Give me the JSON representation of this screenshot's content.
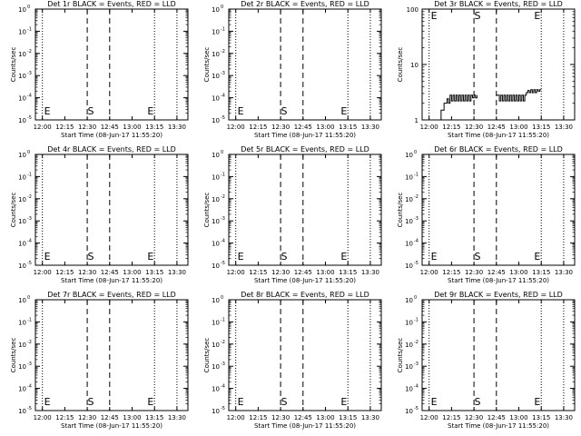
{
  "figure": {
    "background": "#ffffff",
    "ink": "#000000",
    "red": "#ff0000"
  },
  "chart_data": [
    {
      "type": "line",
      "title": "Det 1r BLACK = Events, RED = LLD",
      "xlabel": "Start Time (08-Jun-17 11:55:20)",
      "ylabel": "Counts/sec",
      "x_ticks": [
        "12:00",
        "12:15",
        "12:30",
        "12:45",
        "13:00",
        "13:15",
        "13:30"
      ],
      "y_scale": "log",
      "y_ticks": [
        "10^0",
        "10^-1",
        "10^-2",
        "10^-3",
        "10^-4",
        "10^-5"
      ],
      "markers": [
        {
          "label": "E",
          "x": "12:00"
        },
        {
          "label": "S",
          "x": "12:29"
        },
        {
          "label": "E",
          "x": "13:09"
        }
      ],
      "series": []
    },
    {
      "type": "line",
      "title": "Det 2r BLACK = Events, RED = LLD",
      "xlabel": "Start Time (08-Jun-17 11:55:20)",
      "ylabel": "Counts/sec",
      "x_ticks": [
        "12:00",
        "12:15",
        "12:30",
        "12:45",
        "13:00",
        "13:15",
        "13:30"
      ],
      "y_scale": "log",
      "y_ticks": [
        "10^0",
        "10^-1",
        "10^-2",
        "10^-3",
        "10^-4",
        "10^-5"
      ],
      "markers": [
        {
          "label": "E",
          "x": "12:00"
        },
        {
          "label": "S",
          "x": "12:29"
        },
        {
          "label": "E",
          "x": "13:09"
        }
      ],
      "series": []
    },
    {
      "type": "line",
      "title": "Det 3r BLACK = Events, RED = LLD",
      "xlabel": "Start Time (08-Jun-17 11:55:20)",
      "ylabel": "Counts/sec",
      "x_ticks": [
        "12:00",
        "12:15",
        "12:30",
        "12:45",
        "13:00",
        "13:15",
        "13:30"
      ],
      "y_scale": "log",
      "y_ticks": [
        "1",
        "10",
        "100"
      ],
      "markers": [
        {
          "label": "E",
          "x": "12:00"
        },
        {
          "label": "S",
          "x": "12:29"
        },
        {
          "label": "E",
          "x": "13:09"
        }
      ],
      "series": [
        {
          "color": "#000000",
          "x": [
            "12:08",
            "12:08",
            "12:10",
            "12:10",
            "12:11",
            "12:12",
            "12:13",
            "12:14",
            "12:15",
            "12:16",
            "12:17",
            "12:18",
            "12:19",
            "12:20",
            "12:21",
            "12:22",
            "12:23",
            "12:24",
            "12:25",
            "12:26",
            "12:27",
            "12:28",
            "12:29",
            "12:30",
            "12:31",
            "12:32"
          ],
          "y": [
            1,
            1.5,
            1.5,
            2,
            2,
            2.4,
            2,
            2.8,
            2.2,
            2.8,
            2.2,
            2.8,
            2.2,
            2.8,
            2.2,
            2.8,
            2.2,
            2.8,
            2.2,
            2.8,
            2.2,
            2.8,
            2.5,
            2.8,
            2.5,
            2.8
          ]
        },
        {
          "color": "#000000",
          "x": [
            "12:45",
            "12:46",
            "12:47",
            "12:48",
            "12:49",
            "12:50",
            "12:51",
            "12:52",
            "12:53",
            "12:54",
            "12:55",
            "12:56",
            "12:57",
            "12:58",
            "12:59",
            "13:00",
            "13:01",
            "13:02",
            "13:03",
            "13:04",
            "13:05",
            "13:06",
            "13:07",
            "13:08",
            "13:09",
            "13:10",
            "13:11",
            "13:12",
            "13:13",
            "13:14",
            "13:15"
          ],
          "y": [
            2.8,
            2.8,
            2.2,
            2.8,
            2.2,
            2.8,
            2.2,
            2.8,
            2.2,
            2.8,
            2.2,
            2.8,
            2.2,
            2.8,
            2.2,
            2.8,
            2.2,
            2.8,
            2.2,
            2.8,
            3.1,
            3.4,
            3.1,
            3.5,
            3.1,
            3.5,
            3.1,
            3.5,
            3.3,
            3.5,
            3.5
          ]
        }
      ]
    },
    {
      "type": "line",
      "title": "Det 4r BLACK = Events, RED = LLD",
      "xlabel": "Start Time (08-Jun-17 11:55:20)",
      "ylabel": "Counts/sec",
      "x_ticks": [
        "12:00",
        "12:15",
        "12:30",
        "12:45",
        "13:00",
        "13:15",
        "13:30"
      ],
      "y_scale": "log",
      "y_ticks": [
        "10^0",
        "10^-1",
        "10^-2",
        "10^-3",
        "10^-4",
        "10^-5"
      ],
      "markers": [
        {
          "label": "E",
          "x": "12:00"
        },
        {
          "label": "S",
          "x": "12:29"
        },
        {
          "label": "E",
          "x": "13:09"
        }
      ],
      "series": []
    },
    {
      "type": "line",
      "title": "Det 5r BLACK = Events, RED = LLD",
      "xlabel": "Start Time (08-Jun-17 11:55:20)",
      "ylabel": "Counts/sec",
      "x_ticks": [
        "12:00",
        "12:15",
        "12:30",
        "12:45",
        "13:00",
        "13:15",
        "13:30"
      ],
      "y_scale": "log",
      "y_ticks": [
        "10^0",
        "10^-1",
        "10^-2",
        "10^-3",
        "10^-4",
        "10^-5"
      ],
      "markers": [
        {
          "label": "E",
          "x": "12:00"
        },
        {
          "label": "S",
          "x": "12:29"
        },
        {
          "label": "E",
          "x": "13:09"
        }
      ],
      "series": []
    },
    {
      "type": "line",
      "title": "Det 6r BLACK = Events, RED = LLD",
      "xlabel": "Start Time (08-Jun-17 11:55:20)",
      "ylabel": "Counts/sec",
      "x_ticks": [
        "12:00",
        "12:15",
        "12:30",
        "12:45",
        "13:00",
        "13:15",
        "13:30"
      ],
      "y_scale": "log",
      "y_ticks": [
        "10^0",
        "10^-1",
        "10^-2",
        "10^-3",
        "10^-4",
        "10^-5"
      ],
      "markers": [
        {
          "label": "E",
          "x": "12:00"
        },
        {
          "label": "S",
          "x": "12:29"
        },
        {
          "label": "E",
          "x": "13:09"
        }
      ],
      "series": []
    },
    {
      "type": "line",
      "title": "Det 7r BLACK = Events, RED = LLD",
      "xlabel": "Start Time (08-Jun-17 11:55:20)",
      "ylabel": "Counts/sec",
      "x_ticks": [
        "12:00",
        "12:15",
        "12:30",
        "12:45",
        "13:00",
        "13:15",
        "13:30"
      ],
      "y_scale": "log",
      "y_ticks": [
        "10^0",
        "10^-1",
        "10^-2",
        "10^-3",
        "10^-4",
        "10^-5"
      ],
      "markers": [
        {
          "label": "E",
          "x": "12:00"
        },
        {
          "label": "S",
          "x": "12:29"
        },
        {
          "label": "E",
          "x": "13:09"
        }
      ],
      "series": []
    },
    {
      "type": "line",
      "title": "Det 8r BLACK = Events, RED = LLD",
      "xlabel": "Start Time (08-Jun-17 11:55:20)",
      "ylabel": "Counts/sec",
      "x_ticks": [
        "12:00",
        "12:15",
        "12:30",
        "12:45",
        "13:00",
        "13:15",
        "13:30"
      ],
      "y_scale": "log",
      "y_ticks": [
        "10^0",
        "10^-1",
        "10^-2",
        "10^-3",
        "10^-4",
        "10^-5"
      ],
      "markers": [
        {
          "label": "E",
          "x": "12:00"
        },
        {
          "label": "S",
          "x": "12:29"
        },
        {
          "label": "E",
          "x": "13:09"
        }
      ],
      "series": []
    },
    {
      "type": "line",
      "title": "Det 9r BLACK = Events, RED = LLD",
      "xlabel": "Start Time (08-Jun-17 11:55:20)",
      "ylabel": "Counts/sec",
      "x_ticks": [
        "12:00",
        "12:15",
        "12:30",
        "12:45",
        "13:00",
        "13:15",
        "13:30"
      ],
      "y_scale": "log",
      "y_ticks": [
        "10^0",
        "10^-1",
        "10^-2",
        "10^-3",
        "10^-4",
        "10^-5"
      ],
      "markers": [
        {
          "label": "E",
          "x": "12:00"
        },
        {
          "label": "S",
          "x": "12:29"
        },
        {
          "label": "E",
          "x": "13:09"
        }
      ],
      "series": []
    }
  ]
}
